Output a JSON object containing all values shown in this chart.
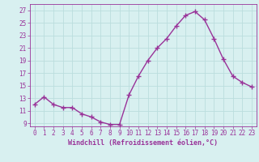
{
  "x": [
    0,
    1,
    2,
    3,
    4,
    5,
    6,
    7,
    8,
    9,
    10,
    11,
    12,
    13,
    14,
    15,
    16,
    17,
    18,
    19,
    20,
    21,
    22,
    23
  ],
  "y": [
    12.0,
    13.2,
    12.0,
    11.5,
    11.5,
    10.5,
    10.0,
    9.2,
    8.8,
    8.8,
    13.5,
    16.5,
    19.0,
    21.0,
    22.5,
    24.5,
    26.2,
    26.8,
    25.5,
    22.5,
    19.2,
    16.5,
    15.5,
    14.8
  ],
  "line_color": "#993399",
  "marker": "+",
  "marker_size": 4,
  "bg_color": "#d8f0f0",
  "grid_color": "#bbdddd",
  "xlabel": "Windchill (Refroidissement éolien,°C)",
  "xlabel_color": "#993399",
  "tick_color": "#993399",
  "ylim": [
    8.5,
    28
  ],
  "xlim": [
    -0.5,
    23.5
  ],
  "yticks": [
    9,
    11,
    13,
    15,
    17,
    19,
    21,
    23,
    25,
    27
  ],
  "xticks": [
    0,
    1,
    2,
    3,
    4,
    5,
    6,
    7,
    8,
    9,
    10,
    11,
    12,
    13,
    14,
    15,
    16,
    17,
    18,
    19,
    20,
    21,
    22,
    23
  ],
  "line_width": 1.0,
  "markeredgewidth": 1.0
}
